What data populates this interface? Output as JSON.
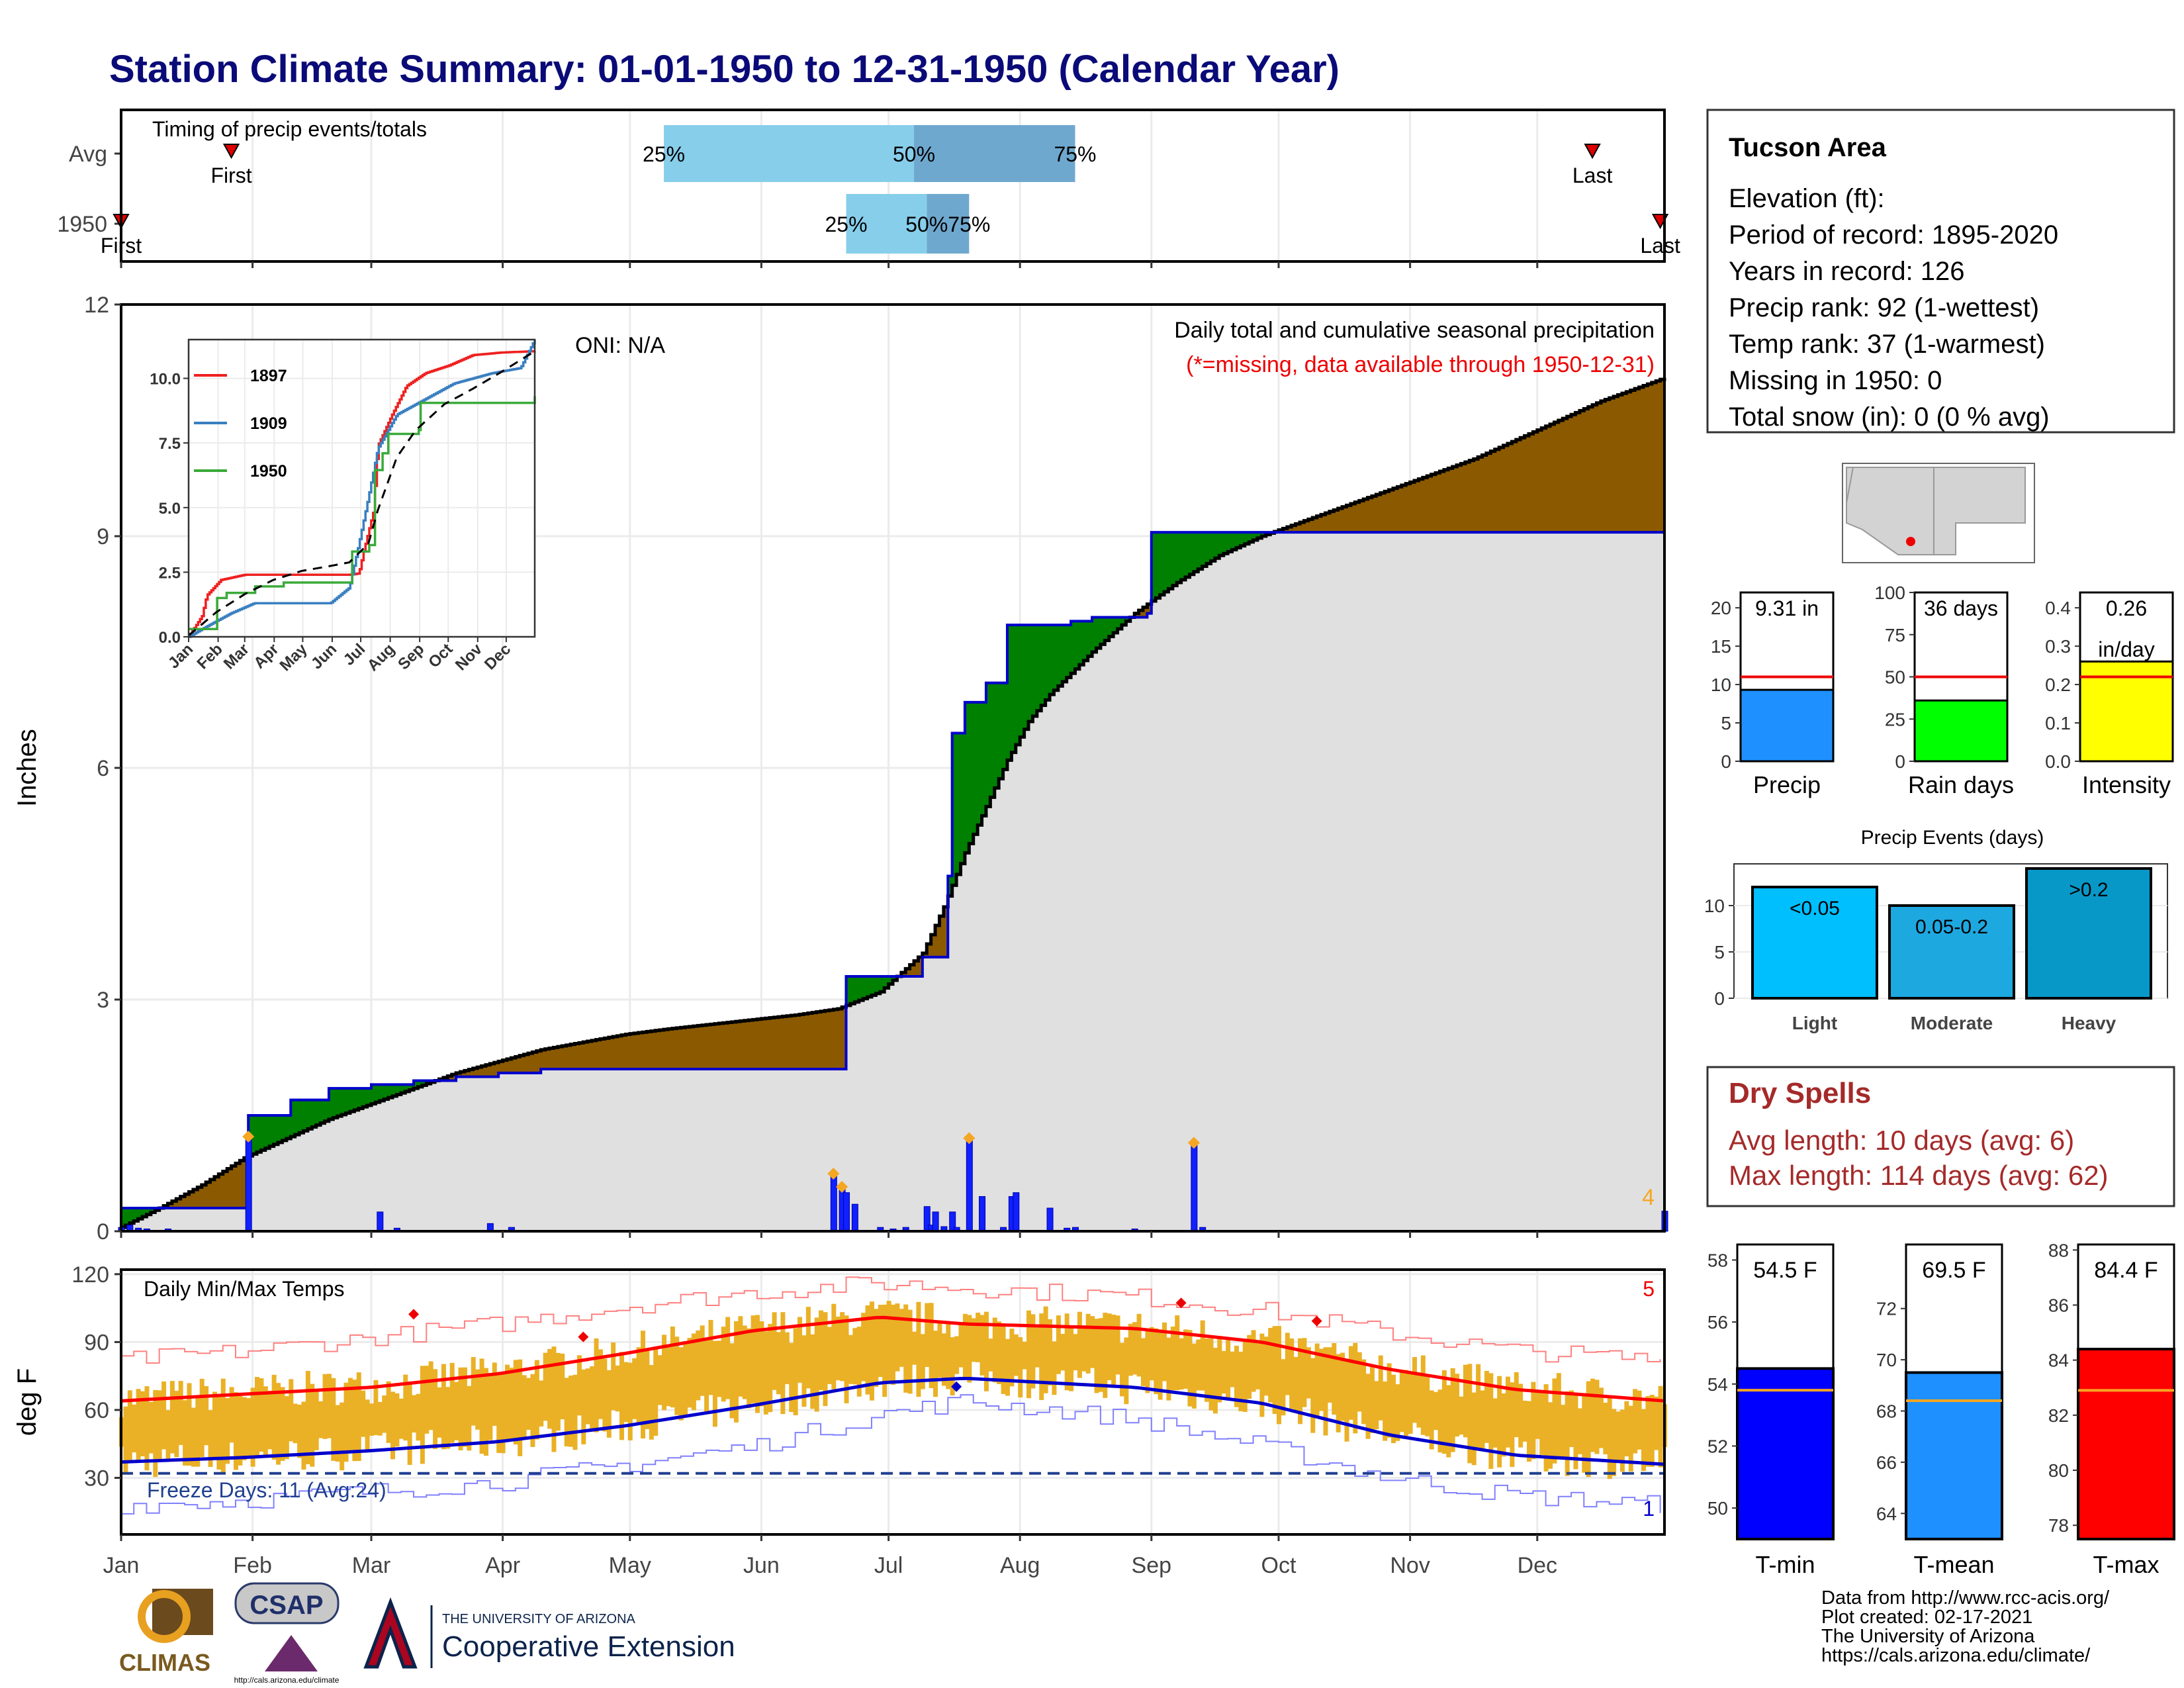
{
  "title": "Station Climate Summary: 01-01-1950 to 12-31-1950 (Calendar Year)",
  "colors": {
    "title": "#0a0a78",
    "precip_brown": "#8b5a00",
    "precip_green": "#008000",
    "cum_fill": "#e0e0e0",
    "daily_bar": "#1020ff",
    "temp_gold": "#eab126",
    "tmax_line": "#ff0000",
    "tmin_line": "#0000cc",
    "dry_text": "#a52a2a"
  },
  "timing": {
    "title": "Timing of precip events/totals",
    "rows": [
      {
        "label": "Avg",
        "first_day": 27,
        "last_day": 348,
        "p25": 129,
        "p50": 188,
        "p75": 226,
        "first_label": "First",
        "last_label": "Last",
        "p25_label": "25%",
        "p50_label": "50%",
        "p75_label": "75%"
      },
      {
        "label": "1950",
        "first_day": 1,
        "last_day": 364,
        "p25": 172,
        "p50": 191,
        "p75": 201,
        "first_label": "First",
        "last_label": "Last",
        "p25_label": "25%",
        "p50_label": "50%",
        "p75_label": "75%"
      }
    ]
  },
  "months": [
    "Jan",
    "Feb",
    "Mar",
    "Apr",
    "May",
    "Jun",
    "Jul",
    "Aug",
    "Sep",
    "Oct",
    "Nov",
    "Dec"
  ],
  "main": {
    "ylabel": "Inches",
    "yticks": [
      "0",
      "3",
      "6",
      "9",
      "12"
    ],
    "oni": "ONI: N/A",
    "note1": "Daily total and cumulative seasonal precipitation",
    "note2": "(*=missing, data available through 1950-12-31)",
    "corner": "4"
  },
  "inset": {
    "yticks": [
      "0.0",
      "2.5",
      "5.0",
      "7.5",
      "10.0"
    ],
    "months": [
      "Jan",
      "Feb",
      "Mar",
      "Apr",
      "May",
      "Jun",
      "Jul",
      "Aug",
      "Sep",
      "Oct",
      "Nov",
      "Dec"
    ],
    "legend": [
      {
        "label": "1897",
        "color": "#ee2020"
      },
      {
        "label": "1909",
        "color": "#3a7fc0"
      },
      {
        "label": "1950",
        "color": "#3aaa3a"
      }
    ]
  },
  "temps": {
    "title": "Daily Min/Max Temps",
    "ylabel": "deg F",
    "yticks": [
      "30",
      "60",
      "90",
      "120"
    ],
    "freeze": "Freeze Days: 11 (Avg:24)",
    "corner_top": "5",
    "corner_bottom": "1"
  },
  "station": {
    "name": "Tucson Area",
    "lines": [
      "Elevation (ft):",
      "Period of record: 1895-2020",
      "Years in record: 126",
      "Precip rank: 92 (1-wettest)",
      "Temp rank: 37 (1-warmest)",
      "Missing in 1950: 0",
      "Total snow (in): 0 (0 % avg)"
    ]
  },
  "bar_panels": [
    {
      "name": "Precip",
      "value_label": "9.31 in",
      "value": 9.31,
      "avg": 11.0,
      "ticks": [
        "0",
        "5",
        "10",
        "15",
        "20"
      ],
      "max": 22,
      "color": "#1e90ff"
    },
    {
      "name": "Rain days",
      "value_label": "36 days",
      "value": 36,
      "avg": 50,
      "ticks": [
        "0",
        "25",
        "50",
        "75",
        "100"
      ],
      "max": 100,
      "color": "#00ff00"
    },
    {
      "name": "Intensity",
      "value_label": "0.26",
      "value_label2": "in/day",
      "value": 0.26,
      "avg": 0.22,
      "ticks": [
        "0.0",
        "0.1",
        "0.2",
        "0.3",
        "0.4"
      ],
      "max": 0.44,
      "color": "#ffff00"
    }
  ],
  "events": {
    "title": "Precip Events (days)",
    "ticks": [
      "0",
      "5",
      "10"
    ],
    "bars": [
      {
        "name": "Light",
        "label": "<0.05",
        "value": 12,
        "color": "#00bfff"
      },
      {
        "name": "Moderate",
        "label": "0.05-0.2",
        "value": 10,
        "color": "#1ea8e0"
      },
      {
        "name": "Heavy",
        "label": ">0.2",
        "value": 14,
        "color": "#0898c8"
      }
    ]
  },
  "dry_spells": {
    "title": "Dry Spells",
    "line1": "Avg length: 10 days (avg: 6)",
    "line2": "Max length: 114 days (avg: 62)"
  },
  "temp_panels": [
    {
      "name": "T-min",
      "value_label": "54.5 F",
      "value": 54.5,
      "avg": 53.8,
      "min": 49,
      "max": 58.5,
      "ticks": [
        "50",
        "52",
        "54",
        "56",
        "58"
      ],
      "color": "#0000ff"
    },
    {
      "name": "T-mean",
      "value_label": "69.5 F",
      "value": 69.5,
      "avg": 68.4,
      "min": 63,
      "max": 74.5,
      "ticks": [
        "64",
        "66",
        "68",
        "70",
        "72"
      ],
      "color": "#1e90ff"
    },
    {
      "name": "T-max",
      "value_label": "84.4 F",
      "value": 84.4,
      "avg": 82.9,
      "min": 77.5,
      "max": 88.2,
      "ticks": [
        "78",
        "80",
        "82",
        "84",
        "86",
        "88"
      ],
      "color": "#ff0000"
    }
  ],
  "footer": {
    "lines": [
      "Data from http://www.rcc-acis.org/",
      "Plot created: 02-17-2021",
      "The University of Arizona",
      "https://cals.arizona.edu/climate/"
    ],
    "logo_climas": "CLIMAS",
    "logo_csap": "CSAP",
    "logo_csap_url": "http://cals.arizona.edu/climate",
    "ua_small": "THE UNIVERSITY OF ARIZONA",
    "ua_big": "Cooperative Extension"
  },
  "chart_data": [
    {
      "type": "area",
      "title": "Daily total and cumulative seasonal precipitation",
      "ylabel": "Inches",
      "ylim": [
        0,
        12
      ],
      "x_unit": "day of year",
      "series": [
        {
          "name": "1950",
          "x": [
            1,
            30,
            31,
            40,
            41,
            50,
            60,
            70,
            80,
            90,
            100,
            110,
            120,
            130,
            140,
            150,
            160,
            171,
            172,
            180,
            190,
            196,
            197,
            199,
            200,
            205,
            210,
            213,
            225,
            230,
            243,
            244,
            300,
            360,
            364,
            365
          ],
          "values": [
            0.3,
            0.3,
            1.5,
            1.5,
            1.7,
            1.85,
            1.9,
            1.95,
            2.0,
            2.05,
            2.1,
            2.1,
            2.1,
            2.1,
            2.1,
            2.1,
            2.1,
            2.1,
            3.3,
            3.3,
            3.55,
            4.6,
            6.45,
            6.45,
            6.85,
            7.1,
            7.85,
            7.85,
            7.9,
            7.95,
            8.0,
            9.05,
            9.05,
            9.05,
            9.05,
            9.31
          ]
        },
        {
          "name": "Average",
          "x": [
            1,
            10,
            20,
            30,
            40,
            50,
            60,
            70,
            80,
            90,
            100,
            110,
            120,
            130,
            140,
            150,
            160,
            170,
            180,
            190,
            195,
            200,
            205,
            210,
            215,
            220,
            230,
            240,
            250,
            260,
            270,
            280,
            290,
            300,
            310,
            320,
            330,
            340,
            350,
            365
          ],
          "values": [
            0.05,
            0.3,
            0.6,
            0.95,
            1.2,
            1.45,
            1.65,
            1.85,
            2.05,
            2.2,
            2.35,
            2.45,
            2.55,
            2.62,
            2.68,
            2.74,
            2.8,
            2.88,
            3.1,
            3.6,
            4.2,
            4.9,
            5.5,
            6.1,
            6.6,
            6.95,
            7.5,
            8.0,
            8.4,
            8.75,
            9.0,
            9.2,
            9.4,
            9.6,
            9.8,
            10.0,
            10.25,
            10.5,
            10.75,
            11.05
          ]
        }
      ],
      "daily_bars": {
        "x": [
          1,
          3,
          5,
          7,
          12,
          31,
          62,
          66,
          88,
          93,
          169,
          171,
          172,
          174,
          180,
          183,
          186,
          191,
          192,
          193,
          195,
          197,
          198,
          201,
          204,
          209,
          211,
          212,
          220,
          224,
          226,
          240,
          254,
          256,
          365
        ],
        "values": [
          0.05,
          0.08,
          0.04,
          0.03,
          0.03,
          1.2,
          0.25,
          0.04,
          0.1,
          0.05,
          0.72,
          0.55,
          0.5,
          0.35,
          0.05,
          0.03,
          0.05,
          0.32,
          0.08,
          0.25,
          0.06,
          0.25,
          0.05,
          1.18,
          0.45,
          0.05,
          0.45,
          0.5,
          0.3,
          0.04,
          0.05,
          0.03,
          1.12,
          0.05,
          0.26
        ]
      }
    },
    {
      "type": "line",
      "title": "Cumulative precipitation inset",
      "ylim": [
        0,
        11.5
      ],
      "series": [
        {
          "name": "1897",
          "x": [
            1,
            15,
            20,
            35,
            60,
            90,
            120,
            150,
            170,
            180,
            185,
            195,
            200,
            215,
            230,
            250,
            275,
            300,
            330,
            365
          ],
          "values": [
            0,
            0.8,
            1.6,
            2.2,
            2.4,
            2.4,
            2.4,
            2.4,
            2.4,
            2.45,
            3.3,
            4.8,
            7.4,
            8.6,
            9.7,
            10.2,
            10.5,
            10.9,
            11.0,
            11.05
          ]
        },
        {
          "name": "1909",
          "x": [
            1,
            20,
            45,
            70,
            100,
            150,
            170,
            180,
            190,
            200,
            220,
            250,
            280,
            320,
            350,
            365
          ],
          "values": [
            0,
            0.4,
            0.9,
            1.3,
            1.3,
            1.3,
            1.9,
            3.6,
            5.4,
            7.3,
            8.6,
            9.2,
            9.8,
            10.2,
            10.4,
            11.5
          ]
        },
        {
          "name": "1950",
          "x": [
            1,
            30,
            31,
            41,
            70,
            100,
            150,
            171,
            172,
            190,
            197,
            205,
            210,
            243,
            244,
            365
          ],
          "values": [
            0.3,
            0.3,
            1.5,
            1.7,
            1.95,
            2.1,
            2.1,
            2.1,
            3.3,
            3.55,
            6.45,
            7.1,
            7.85,
            8.0,
            9.05,
            9.31
          ]
        },
        {
          "name": "Average",
          "x": [
            1,
            30,
            60,
            90,
            120,
            150,
            170,
            190,
            200,
            220,
            240,
            270,
            300,
            330,
            365
          ],
          "values": [
            0.05,
            0.95,
            1.65,
            2.2,
            2.55,
            2.74,
            2.88,
            3.6,
            4.9,
            6.95,
            8.0,
            9.0,
            9.6,
            10.25,
            11.05
          ]
        }
      ]
    },
    {
      "type": "line",
      "title": "Daily Min/Max Temps",
      "ylabel": "deg F",
      "ylim": [
        5,
        122
      ],
      "series": [
        {
          "name": "Avg max",
          "x": [
            1,
            30,
            60,
            90,
            120,
            150,
            180,
            200,
            240,
            270,
            300,
            330,
            365
          ],
          "values": [
            64,
            67,
            70,
            76,
            85,
            95,
            101,
            98,
            96,
            90,
            78,
            69,
            64
          ]
        },
        {
          "name": "Avg min",
          "x": [
            1,
            30,
            60,
            90,
            120,
            150,
            180,
            200,
            240,
            270,
            300,
            330,
            365
          ],
          "values": [
            37,
            39,
            42,
            46,
            53,
            62,
            72,
            74,
            70,
            63,
            49,
            40,
            36
          ]
        },
        {
          "name": "Record high",
          "x": [
            1,
            30,
            60,
            90,
            120,
            150,
            180,
            200,
            240,
            270,
            300,
            330,
            365
          ],
          "values": [
            82,
            86,
            92,
            98,
            106,
            112,
            116,
            114,
            110,
            104,
            94,
            86,
            82
          ]
        },
        {
          "name": "Record low",
          "x": [
            1,
            30,
            60,
            90,
            120,
            150,
            180,
            200,
            240,
            270,
            300,
            330,
            365
          ],
          "values": [
            18,
            20,
            24,
            28,
            36,
            44,
            58,
            64,
            56,
            44,
            30,
            22,
            18
          ]
        },
        {
          "name": "Freeze",
          "x": [
            1,
            365
          ],
          "values": [
            32,
            32
          ]
        }
      ]
    },
    {
      "type": "bar",
      "title": "Precip Events (days)",
      "categories": [
        "Light",
        "Moderate",
        "Heavy"
      ],
      "values": [
        12,
        10,
        14
      ]
    }
  ]
}
